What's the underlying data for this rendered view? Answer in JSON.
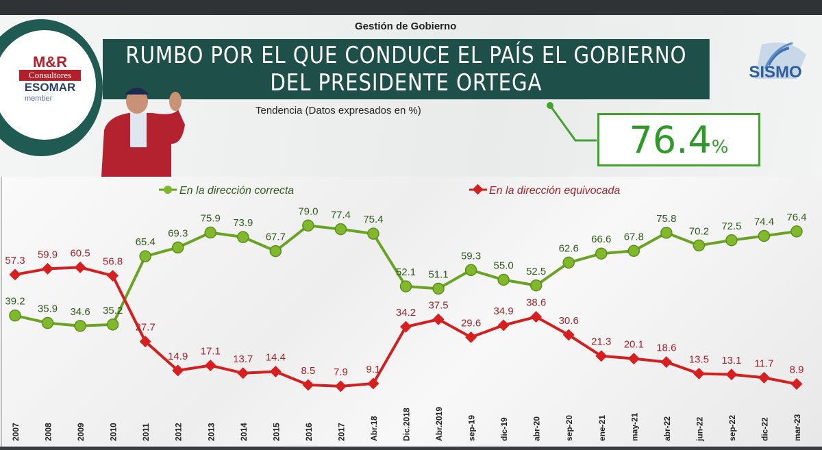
{
  "header": {
    "section": "Gestión de Gobierno",
    "title_line1": "RUMBO POR EL QUE CONDUCE EL PAÍS EL GOBIERNO",
    "title_line2": "DEL PRESIDENTE ORTEGA",
    "subtitle": "Tendencia (Datos expresados en %)",
    "highlight_value": "76.4",
    "highlight_unit": "%"
  },
  "logos": {
    "left": "M&R Consultores ESOMAR member",
    "right": "SISMO"
  },
  "chart_data": {
    "type": "line",
    "categories": [
      "2007",
      "2008",
      "2009",
      "2010",
      "2011",
      "2012",
      "2013",
      "2014",
      "2015",
      "2016",
      "2017",
      "Abr.18",
      "Dic.2018",
      "Abr.2019",
      "sep-19",
      "dic-19",
      "abr-20",
      "sep-20",
      "ene-21",
      "may-21",
      "abr-22",
      "jun-22",
      "sep-22",
      "dic-22",
      "mar-23"
    ],
    "series": [
      {
        "name": "En la dirección correcta",
        "color": "#6aa323",
        "label_color": "#2f5a1a",
        "values": [
          39.2,
          35.9,
          34.6,
          35.2,
          65.4,
          69.3,
          75.9,
          73.9,
          67.7,
          79.0,
          77.4,
          75.4,
          52.1,
          51.1,
          59.3,
          55.0,
          52.5,
          62.6,
          66.6,
          67.8,
          75.8,
          70.2,
          72.5,
          74.4,
          76.4
        ]
      },
      {
        "name": "En la dirección equivocada",
        "color": "#d21f1f",
        "label_color": "#a3222a",
        "values": [
          57.3,
          59.9,
          60.5,
          56.8,
          27.7,
          14.9,
          17.1,
          13.7,
          14.4,
          8.5,
          7.9,
          9.1,
          34.2,
          37.5,
          29.6,
          34.9,
          38.6,
          30.6,
          21.3,
          20.1,
          18.6,
          13.5,
          13.1,
          11.7,
          8.9
        ]
      }
    ],
    "ylim": [
      0,
      80
    ],
    "grid": false,
    "legend": "top"
  }
}
